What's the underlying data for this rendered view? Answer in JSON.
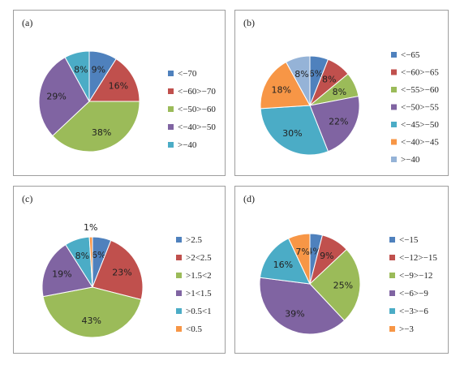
{
  "chart_data": [
    {
      "panel": "(a)",
      "type": "pie",
      "categories": [
        "<−70",
        "<−60>−70",
        "<−50>−60",
        "<−40>−50",
        ">−40"
      ],
      "values": [
        9,
        16,
        38,
        29,
        8
      ],
      "value_labels": [
        "9%",
        "16%",
        "38%",
        "29%",
        "8%"
      ],
      "colors": [
        "#4f81bd",
        "#c0504d",
        "#9bbb59",
        "#8064a2",
        "#4bacc6"
      ],
      "legend_position": "right"
    },
    {
      "panel": "(b)",
      "type": "pie",
      "categories": [
        "<−65",
        "<−60>−65",
        "<−55>−60",
        "<−50>−55",
        "<−45>−50",
        "<−40>−45",
        ">−40"
      ],
      "values": [
        6,
        8,
        8,
        22,
        30,
        18,
        8
      ],
      "value_labels": [
        "6%",
        "8%",
        "8%",
        "22%",
        "30%",
        "18%",
        "8%"
      ],
      "colors": [
        "#4f81bd",
        "#c0504d",
        "#9bbb59",
        "#8064a2",
        "#4bacc6",
        "#f79646",
        "#95b3d7"
      ],
      "legend_position": "right"
    },
    {
      "panel": "(c)",
      "type": "pie",
      "categories": [
        ">2.5",
        ">2<2.5",
        ">1.5<2",
        ">1<1.5",
        ">0.5<1",
        "<0.5"
      ],
      "values": [
        6,
        23,
        43,
        19,
        8,
        1
      ],
      "value_labels": [
        "6%",
        "23%",
        "43%",
        "19%",
        "8%",
        "1%"
      ],
      "colors": [
        "#4f81bd",
        "#c0504d",
        "#9bbb59",
        "#8064a2",
        "#4bacc6",
        "#f79646"
      ],
      "legend_position": "right"
    },
    {
      "panel": "(d)",
      "type": "pie",
      "categories": [
        "<−15",
        "<−12>−15",
        "<−9>−12",
        "<−6>−9",
        "<−3>−6",
        ">−3"
      ],
      "values": [
        4,
        9,
        25,
        39,
        16,
        7
      ],
      "value_labels": [
        "4%",
        "9%",
        "25%",
        "39%",
        "16%",
        "7%"
      ],
      "colors": [
        "#4f81bd",
        "#c0504d",
        "#9bbb59",
        "#8064a2",
        "#4bacc6",
        "#f79646"
      ],
      "legend_position": "right"
    }
  ]
}
